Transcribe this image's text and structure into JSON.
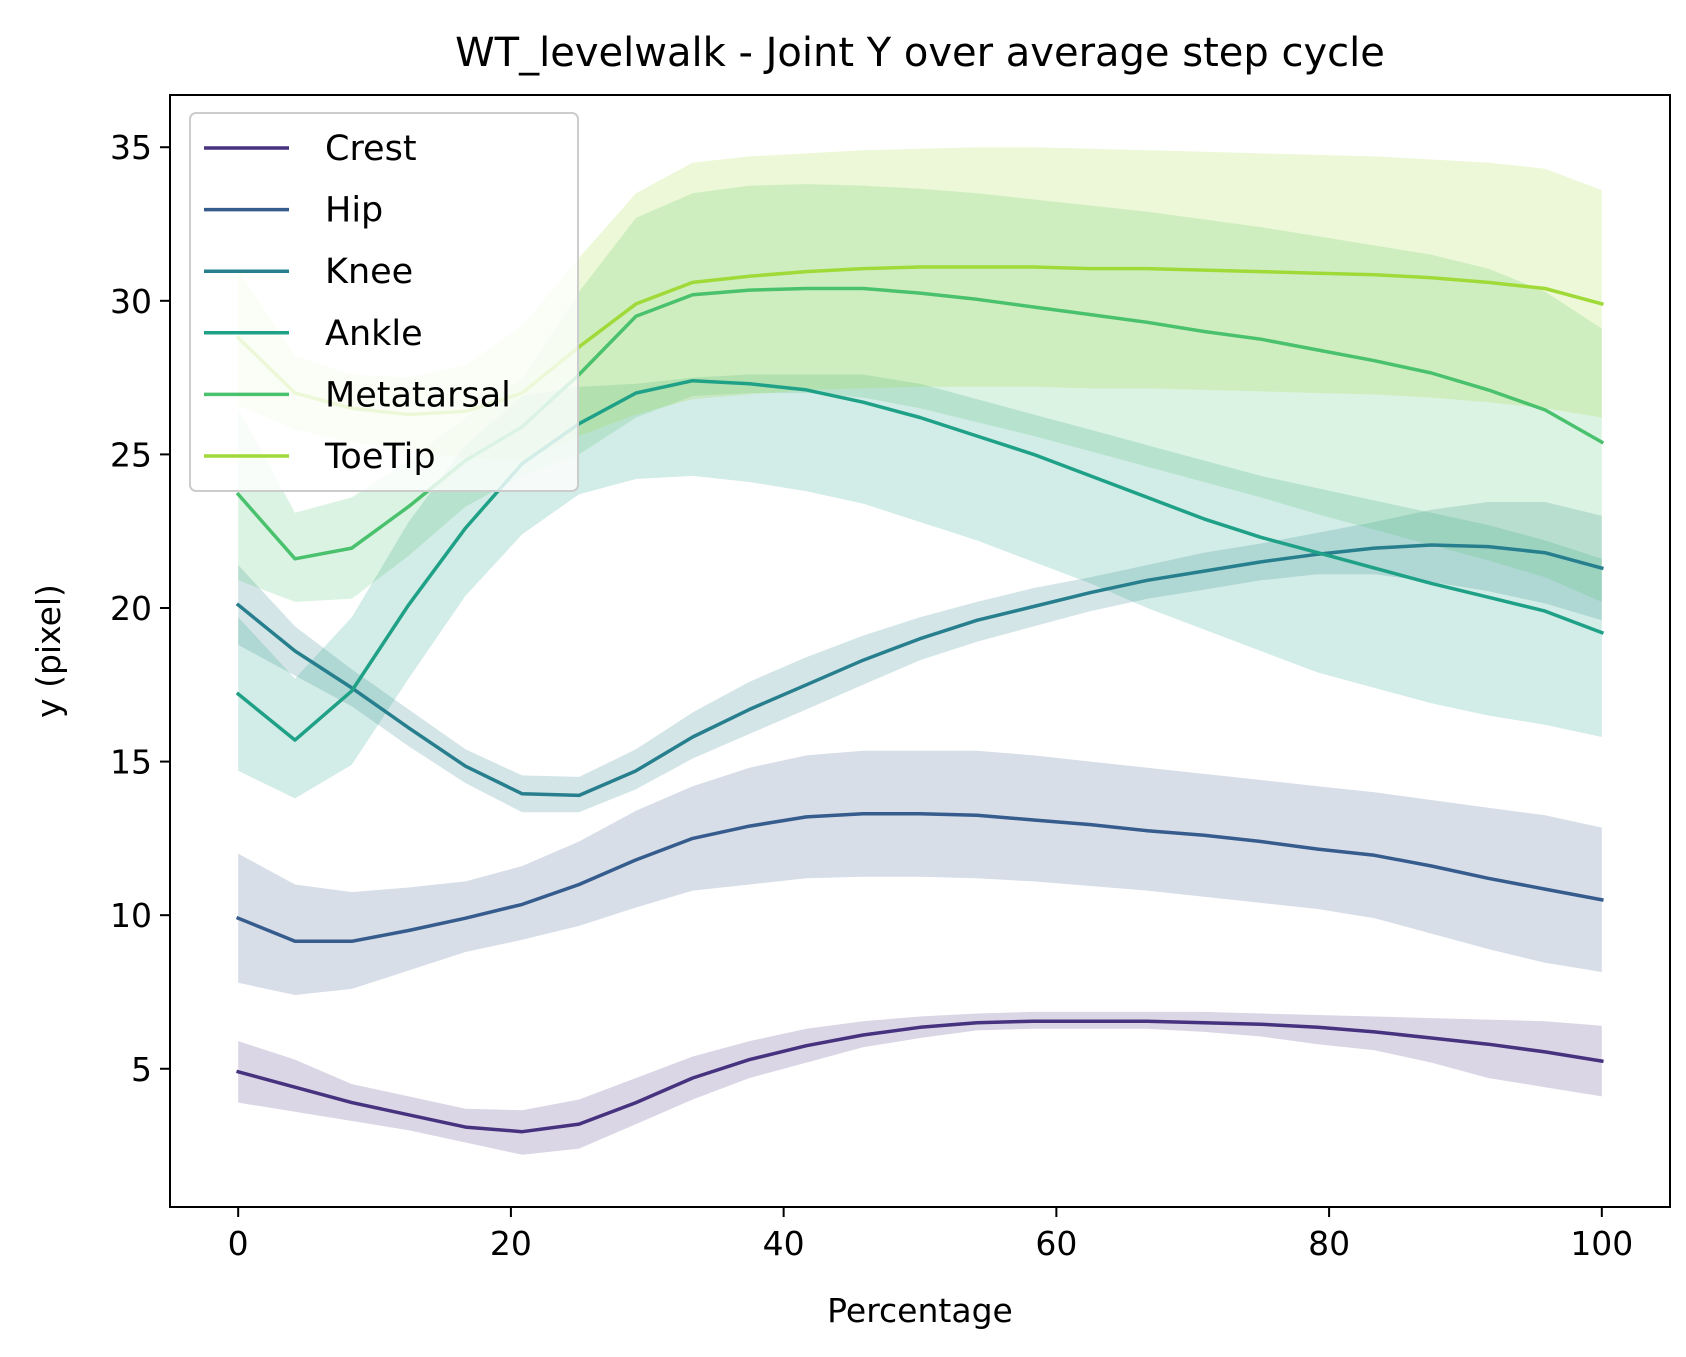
{
  "chart_data": {
    "type": "line",
    "title": "WT_levelwalk - Joint Y over average step cycle",
    "xlabel": "Percentage",
    "ylabel": "y (pixel)",
    "xlim": [
      -5,
      105
    ],
    "ylim": [
      0.5,
      36.7
    ],
    "xticks": [
      "0",
      "20",
      "40",
      "60",
      "80",
      "100"
    ],
    "yticks": [
      "5",
      "10",
      "15",
      "20",
      "25",
      "30",
      "35"
    ],
    "legend_position": "top-left",
    "grid": false,
    "x": [
      0,
      4.17,
      8.33,
      12.5,
      16.67,
      20.83,
      25,
      29.17,
      33.33,
      37.5,
      41.67,
      45.83,
      50,
      54.17,
      58.33,
      62.5,
      66.67,
      70.83,
      75,
      79.17,
      83.33,
      87.5,
      91.67,
      95.83,
      100
    ],
    "series": [
      {
        "name": "Crest",
        "color": "#46327e",
        "values": [
          4.9,
          4.4,
          3.9,
          3.5,
          3.1,
          2.95,
          3.2,
          3.9,
          4.7,
          5.3,
          5.75,
          6.1,
          6.35,
          6.5,
          6.55,
          6.55,
          6.55,
          6.5,
          6.45,
          6.35,
          6.2,
          6.0,
          5.8,
          5.55,
          5.25
        ],
        "upper": [
          5.9,
          5.3,
          4.5,
          4.1,
          3.7,
          3.65,
          4.0,
          4.7,
          5.4,
          5.9,
          6.3,
          6.55,
          6.7,
          6.8,
          6.85,
          6.85,
          6.85,
          6.85,
          6.8,
          6.75,
          6.7,
          6.65,
          6.6,
          6.55,
          6.4
        ],
        "lower": [
          3.9,
          3.6,
          3.3,
          3.0,
          2.6,
          2.2,
          2.4,
          3.2,
          4.0,
          4.7,
          5.2,
          5.7,
          6.0,
          6.25,
          6.3,
          6.3,
          6.3,
          6.2,
          6.05,
          5.8,
          5.6,
          5.2,
          4.7,
          4.4,
          4.1
        ]
      },
      {
        "name": "Hip",
        "color": "#365c8d",
        "values": [
          9.9,
          9.15,
          9.15,
          9.5,
          9.9,
          10.35,
          11.0,
          11.8,
          12.5,
          12.9,
          13.2,
          13.3,
          13.3,
          13.25,
          13.1,
          12.95,
          12.75,
          12.6,
          12.4,
          12.15,
          11.95,
          11.6,
          11.2,
          10.85,
          10.5
        ],
        "upper": [
          12.0,
          11.0,
          10.75,
          10.9,
          11.1,
          11.6,
          12.4,
          13.4,
          14.2,
          14.8,
          15.2,
          15.35,
          15.35,
          15.35,
          15.2,
          15.0,
          14.8,
          14.6,
          14.4,
          14.2,
          14.0,
          13.75,
          13.5,
          13.25,
          12.85
        ],
        "lower": [
          7.8,
          7.4,
          7.6,
          8.2,
          8.8,
          9.2,
          9.65,
          10.25,
          10.8,
          11.0,
          11.2,
          11.25,
          11.25,
          11.2,
          11.1,
          10.95,
          10.8,
          10.6,
          10.4,
          10.2,
          9.9,
          9.4,
          8.9,
          8.45,
          8.15
        ]
      },
      {
        "name": "Knee",
        "color": "#277f8e",
        "values": [
          20.1,
          18.6,
          17.4,
          16.1,
          14.85,
          13.95,
          13.9,
          14.7,
          15.8,
          16.7,
          17.5,
          18.3,
          19.0,
          19.6,
          20.05,
          20.5,
          20.9,
          21.2,
          21.5,
          21.75,
          21.95,
          22.05,
          22.0,
          21.8,
          21.3
        ],
        "upper": [
          21.4,
          19.4,
          18.0,
          16.7,
          15.4,
          14.55,
          14.5,
          15.4,
          16.6,
          17.6,
          18.4,
          19.1,
          19.7,
          20.2,
          20.65,
          21.0,
          21.4,
          21.8,
          22.1,
          22.45,
          22.8,
          23.2,
          23.45,
          23.45,
          23.0
        ],
        "lower": [
          18.8,
          17.8,
          16.8,
          15.5,
          14.3,
          13.35,
          13.35,
          14.1,
          15.1,
          15.9,
          16.7,
          17.5,
          18.3,
          18.9,
          19.4,
          19.9,
          20.3,
          20.6,
          20.9,
          21.1,
          21.1,
          20.85,
          20.55,
          20.15,
          19.6
        ]
      },
      {
        "name": "Ankle",
        "color": "#1fa187",
        "values": [
          17.2,
          15.7,
          17.3,
          20.1,
          22.6,
          24.7,
          26.0,
          27.0,
          27.4,
          27.3,
          27.1,
          26.7,
          26.2,
          25.6,
          25.0,
          24.3,
          23.6,
          22.9,
          22.3,
          21.8,
          21.3,
          20.8,
          20.35,
          19.9,
          19.2
        ],
        "upper": [
          19.7,
          17.7,
          19.7,
          22.8,
          25.3,
          26.9,
          27.2,
          27.3,
          27.5,
          27.6,
          27.6,
          27.6,
          27.3,
          26.8,
          26.3,
          25.8,
          25.3,
          24.8,
          24.3,
          23.9,
          23.5,
          23.1,
          22.7,
          22.2,
          21.6
        ],
        "lower": [
          14.7,
          13.8,
          14.9,
          17.7,
          20.4,
          22.4,
          23.7,
          24.2,
          24.3,
          24.1,
          23.8,
          23.4,
          22.8,
          22.2,
          21.5,
          20.8,
          20.0,
          19.3,
          18.6,
          17.9,
          17.4,
          16.9,
          16.5,
          16.2,
          15.8
        ]
      },
      {
        "name": "Metatarsal",
        "color": "#4ac16d",
        "values": [
          23.7,
          21.6,
          21.95,
          23.3,
          24.8,
          25.9,
          27.6,
          29.5,
          30.2,
          30.35,
          30.4,
          30.4,
          30.25,
          30.05,
          29.8,
          29.55,
          29.3,
          29.0,
          28.75,
          28.4,
          28.05,
          27.65,
          27.1,
          26.45,
          25.4
        ],
        "upper": [
          26.5,
          23.1,
          23.6,
          24.8,
          26.2,
          27.5,
          30.3,
          32.7,
          33.5,
          33.75,
          33.8,
          33.75,
          33.65,
          33.5,
          33.3,
          33.1,
          32.9,
          32.65,
          32.4,
          32.1,
          31.8,
          31.5,
          31.05,
          30.3,
          29.1
        ],
        "lower": [
          20.9,
          20.2,
          20.3,
          21.7,
          23.3,
          24.3,
          25.0,
          26.2,
          26.9,
          27.0,
          27.0,
          26.85,
          26.5,
          26.05,
          25.6,
          25.1,
          24.6,
          24.1,
          23.6,
          23.05,
          22.55,
          22.05,
          21.55,
          21.0,
          20.2
        ]
      },
      {
        "name": "ToeTip",
        "color": "#a0da39",
        "values": [
          28.8,
          27.0,
          26.5,
          26.3,
          26.4,
          27.0,
          28.5,
          29.9,
          30.6,
          30.8,
          30.95,
          31.05,
          31.1,
          31.1,
          31.1,
          31.05,
          31.05,
          31.0,
          30.95,
          30.9,
          30.85,
          30.75,
          30.6,
          30.4,
          29.9
        ],
        "upper": [
          31.0,
          28.2,
          27.6,
          27.5,
          27.9,
          29.2,
          31.4,
          33.5,
          34.5,
          34.7,
          34.8,
          34.9,
          34.95,
          35.0,
          35.0,
          34.95,
          34.9,
          34.85,
          34.8,
          34.75,
          34.7,
          34.6,
          34.5,
          34.3,
          33.6
        ],
        "lower": [
          26.6,
          25.8,
          25.4,
          25.1,
          24.9,
          24.8,
          25.6,
          26.3,
          26.8,
          26.95,
          27.1,
          27.15,
          27.2,
          27.2,
          27.2,
          27.15,
          27.15,
          27.1,
          27.05,
          27.0,
          26.95,
          26.85,
          26.7,
          26.5,
          26.2
        ]
      }
    ]
  }
}
